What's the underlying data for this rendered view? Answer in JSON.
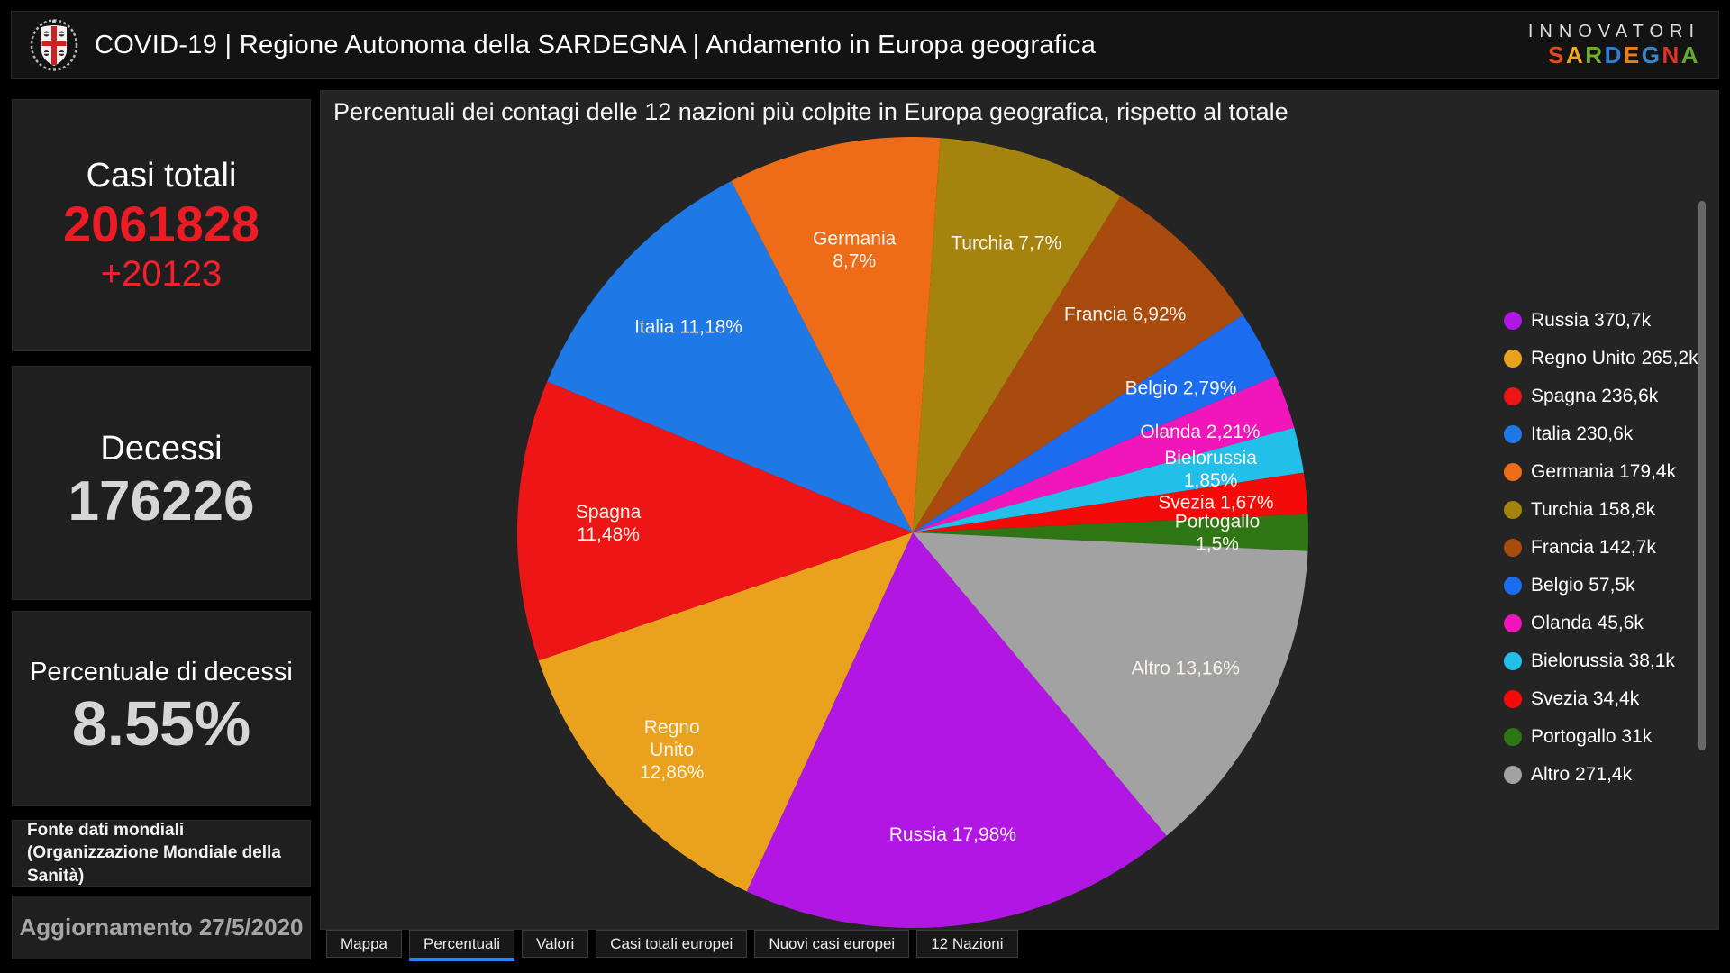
{
  "theme": {
    "page_bg": "#000000",
    "panel_bg": "#1f1f1f",
    "chart_bg": "#242424",
    "accent_red": "#ec1c24",
    "delta_red": "#f5202c",
    "value_gray": "#d6d6d6",
    "muted_gray": "#a6a6a6",
    "tab_active_blue": "#2b85f0",
    "pie_label_color": "#f7f3ea"
  },
  "header": {
    "title": "COVID-19 | Regione Autonoma della SARDEGNA | Andamento in Europa geografica",
    "brand": {
      "line1": "INNOVATORI",
      "line2": "SARDEGNA",
      "letter_colors": [
        "#e8491f",
        "#f0a81c",
        "#6fae2f",
        "#2f7ed8",
        "#ef7c17",
        "#3a86c8",
        "#e03424",
        "#67a82e"
      ]
    }
  },
  "sidebar": {
    "cases": {
      "label": "Casi totali",
      "value": "2061828",
      "delta": "+20123"
    },
    "deaths": {
      "label": "Decessi",
      "value": "176226"
    },
    "death_rate": {
      "label": "Percentuale di decessi",
      "value": "8.55%"
    },
    "source_note": "Fonte dati mondiali (Organizzazione Mondiale della Sanità)",
    "updated": "Aggiornamento 27/5/2020"
  },
  "chart": {
    "title": "Percentuali dei contagi delle 12 nazioni più colpite in Europa geografica, rispetto al totale"
  },
  "chart_data": {
    "type": "pie",
    "title": "Percentuali dei contagi delle 12 nazioni più colpite in Europa geografica, rispetto al totale",
    "unit": "percent of total European cases",
    "legend_position": "right",
    "direction": "clockwise",
    "start_angle_deg": 4,
    "pie_order_clockwise": [
      "Turchia",
      "Francia",
      "Belgio",
      "Olanda",
      "Bielorussia",
      "Svezia",
      "Portogallo",
      "Altro",
      "Russia",
      "Regno Unito",
      "Spagna",
      "Italia",
      "Germania"
    ],
    "slices": [
      {
        "name": "Russia",
        "pct": 17.98,
        "pct_text": "17,98%",
        "cases_text": "370,7k",
        "color": "#b216e2",
        "label_lines": [
          "Russia 17,98%"
        ]
      },
      {
        "name": "Regno Unito",
        "pct": 12.86,
        "pct_text": "12,86%",
        "cases_text": "265,2k",
        "color": "#eaa21e",
        "label_lines": [
          "Regno",
          "Unito",
          "12,86%"
        ],
        "label_r": 0.82
      },
      {
        "name": "Spagna",
        "pct": 11.48,
        "pct_text": "11,48%",
        "cases_text": "236,6k",
        "color": "#ed1515",
        "label_lines": [
          "Spagna",
          "11,48%"
        ]
      },
      {
        "name": "Italia",
        "pct": 11.18,
        "pct_text": "11,18%",
        "cases_text": "230,6k",
        "color": "#1e78e6",
        "label_lines": [
          "Italia 11,18%"
        ]
      },
      {
        "name": "Germania",
        "pct": 8.7,
        "pct_text": "8,7%",
        "cases_text": "179,4k",
        "color": "#ee6b18",
        "label_lines": [
          "Germania",
          "8,7%"
        ],
        "label_r": 0.73
      },
      {
        "name": "Turchia",
        "pct": 7.7,
        "pct_text": "7,7%",
        "cases_text": "158,8k",
        "color": "#a5830f",
        "label_lines": [
          "Turchia 7,7%"
        ]
      },
      {
        "name": "Francia",
        "pct": 6.92,
        "pct_text": "6,92%",
        "cases_text": "142,7k",
        "color": "#a94b0f",
        "label_lines": [
          "Francia 6,92%"
        ]
      },
      {
        "name": "Belgio",
        "pct": 2.79,
        "pct_text": "2,79%",
        "cases_text": "57,5k",
        "color": "#1c6cf0",
        "label_lines": [
          "Belgio 2,79%"
        ]
      },
      {
        "name": "Olanda",
        "pct": 2.21,
        "pct_text": "2,21%",
        "cases_text": "45,6k",
        "color": "#f016bb",
        "label_lines": [
          "Olanda 2,21%"
        ]
      },
      {
        "name": "Bielorussia",
        "pct": 1.85,
        "pct_text": "1,85%",
        "cases_text": "38,1k",
        "color": "#21bfe9",
        "label_lines": [
          "Bielorussia",
          "1,85%"
        ]
      },
      {
        "name": "Svezia",
        "pct": 1.67,
        "pct_text": "1,67%",
        "cases_text": "34,4k",
        "color": "#f50a0a",
        "label_lines": [
          "Svezia 1,67%"
        ]
      },
      {
        "name": "Portogallo",
        "pct": 1.5,
        "pct_text": "1,5%",
        "cases_text": "31k",
        "color": "#2e7513",
        "label_lines": [
          "Portogallo",
          "1,5%"
        ]
      },
      {
        "name": "Altro",
        "pct": 13.16,
        "pct_text": "13,16%",
        "cases_text": "271,4k",
        "color": "#a2a2a2",
        "label_lines": [
          "Altro 13,16%"
        ]
      }
    ]
  },
  "tabs": [
    {
      "label": "Mappa",
      "active": false
    },
    {
      "label": "Percentuali",
      "active": true
    },
    {
      "label": "Valori",
      "active": false
    },
    {
      "label": "Casi totali europei",
      "active": false
    },
    {
      "label": "Nuovi casi europei",
      "active": false
    },
    {
      "label": "12 Nazioni",
      "active": false
    }
  ]
}
